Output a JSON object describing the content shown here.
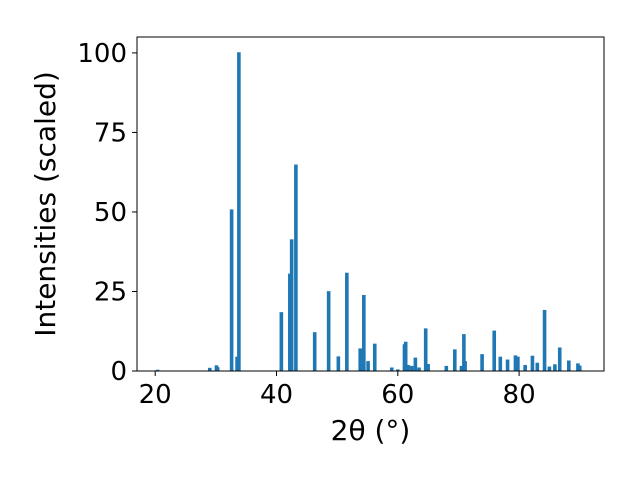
{
  "chart_data": {
    "type": "bar",
    "xlabel": "2θ (°)",
    "ylabel": "Intensities (scaled)",
    "xlim": [
      17,
      94
    ],
    "ylim": [
      0,
      105
    ],
    "xticks": [
      20,
      40,
      60,
      80
    ],
    "yticks": [
      0,
      25,
      50,
      75,
      100
    ],
    "grid": false,
    "color": "#1f77b4",
    "series": [
      {
        "x": [
          20.4,
          29.0,
          30.1,
          30.3,
          32.6,
          33.5,
          33.8,
          40.8,
          42.2,
          42.5,
          43.2,
          46.3,
          48.6,
          50.2,
          51.6,
          53.8,
          54.4,
          55.1,
          56.2,
          59.0,
          60.0,
          61.1,
          61.3,
          61.7,
          62.3,
          62.9,
          63.5,
          64.6,
          65.0,
          68.0,
          69.4,
          70.5,
          70.9,
          71.1,
          73.9,
          75.9,
          76.9,
          78.1,
          79.4,
          79.8,
          81.0,
          82.2,
          83.0,
          84.2,
          85.0,
          85.9,
          86.7,
          88.2,
          89.7,
          90.0
        ],
        "y": [
          0.4,
          1,
          1.8,
          1.2,
          50.8,
          4.5,
          100.2,
          18.5,
          30.6,
          41.4,
          64.9,
          12.2,
          25.1,
          4.6,
          30.9,
          7.1,
          23.9,
          3.1,
          8.6,
          1.1,
          0.5,
          8.4,
          9.2,
          1.9,
          1.6,
          4.2,
          1.1,
          13.4,
          2.2,
          1.6,
          6.8,
          1.6,
          11.6,
          3.1,
          5.3,
          12.7,
          4.5,
          3.6,
          4.9,
          4.5,
          1.9,
          4.8,
          2.6,
          19.2,
          1.4,
          2.1,
          7.4,
          3.3,
          2.4,
          1.7
        ]
      }
    ]
  }
}
